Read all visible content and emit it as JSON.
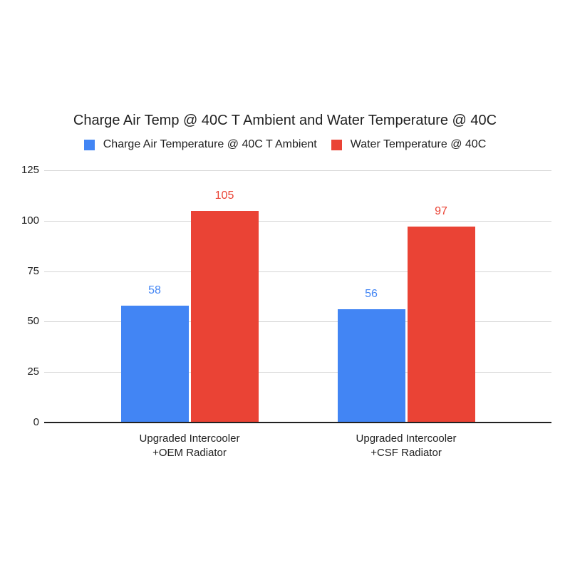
{
  "chart_data": {
    "type": "bar",
    "title": "Charge Air Temp @ 40C T Ambient and Water Temperature @ 40C",
    "categories": [
      "Upgraded Intercooler\n+OEM Radiator",
      "Upgraded Intercooler\n+CSF Radiator"
    ],
    "series": [
      {
        "name": "Charge Air Temperature @ 40C T Ambient",
        "color": "#4285F4",
        "values": [
          58,
          56
        ]
      },
      {
        "name": "Water Temperature @ 40C",
        "color": "#EA4335",
        "values": [
          105,
          97
        ]
      }
    ],
    "xlabel": "",
    "ylabel": "",
    "ylim": [
      0,
      125
    ],
    "yticks": [
      0,
      25,
      50,
      75,
      100,
      125
    ],
    "grid": true,
    "legend_position": "top",
    "data_labels": true,
    "colors": {
      "background": "#ffffff",
      "grid": "#d6d6d6",
      "axis": "#212121",
      "text": "#212121"
    }
  }
}
